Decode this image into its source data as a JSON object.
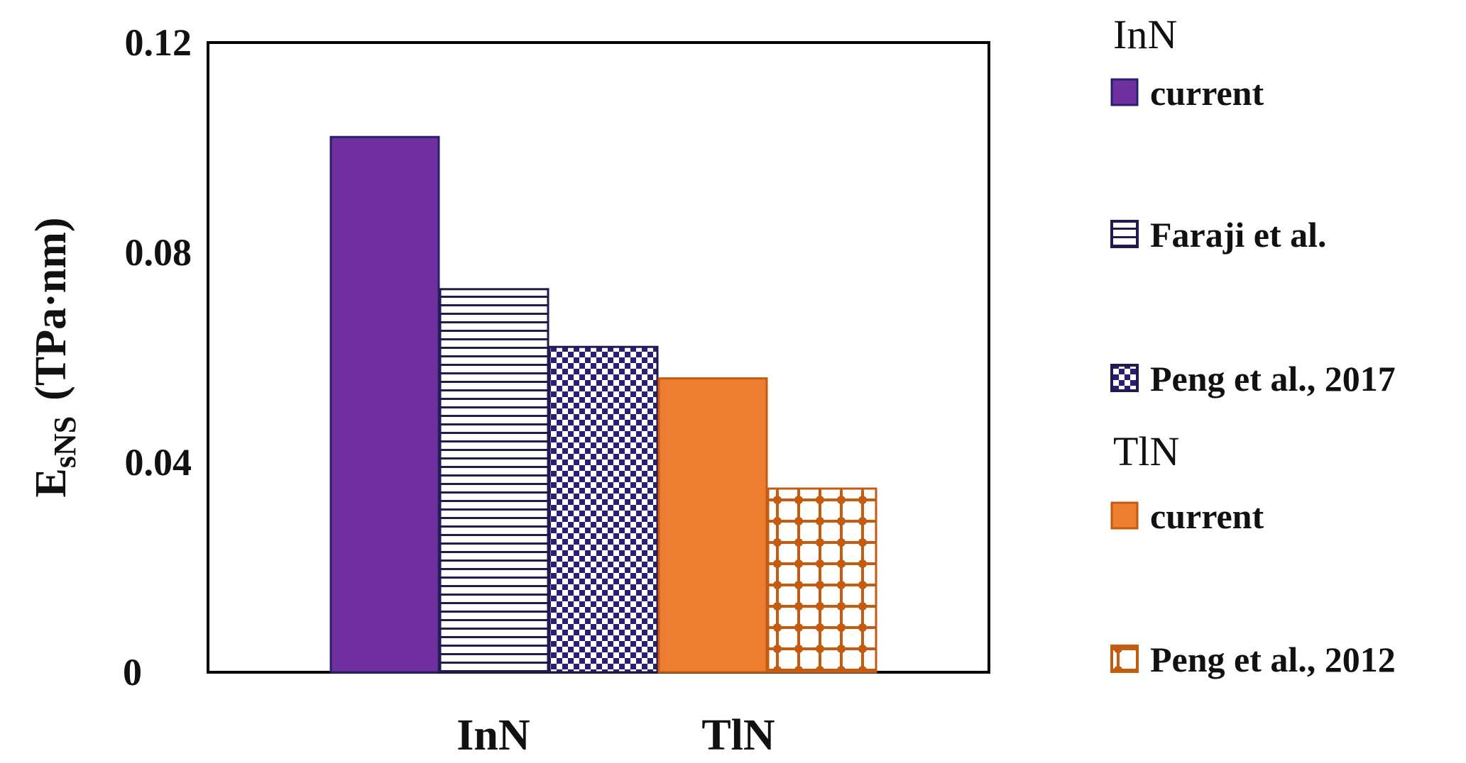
{
  "chart_data": {
    "type": "bar",
    "ylabel": {
      "base": "E",
      "subscript": "sNS",
      "unit": "(TPa·nm)"
    },
    "ylim": [
      0,
      0.12
    ],
    "yticks": [
      "0",
      "0.04",
      "0.08",
      "0.12"
    ],
    "ytick_values": [
      0,
      0.04,
      0.08,
      0.12
    ],
    "categories": [
      "InN",
      "TlN"
    ],
    "grid": false,
    "legend_position": "right",
    "groups": [
      {
        "name": "InN",
        "series": [
          {
            "name": "current",
            "value": 0.102,
            "color": "#7030a0",
            "pattern": "solid"
          },
          {
            "name": "Faraji et al.",
            "value": 0.073,
            "color": "#1f1a4f",
            "pattern": "horizontal-lines"
          },
          {
            "name": "Peng et al., 2017",
            "value": 0.062,
            "color": "#1f1a4f",
            "pattern": "checker"
          }
        ]
      },
      {
        "name": "TlN",
        "series": [
          {
            "name": "current",
            "value": 0.056,
            "color": "#ed7d31",
            "pattern": "solid"
          },
          {
            "name": "Peng et al., 2012",
            "value": 0.035,
            "color": "#c55a11",
            "pattern": "dots"
          }
        ]
      }
    ]
  }
}
